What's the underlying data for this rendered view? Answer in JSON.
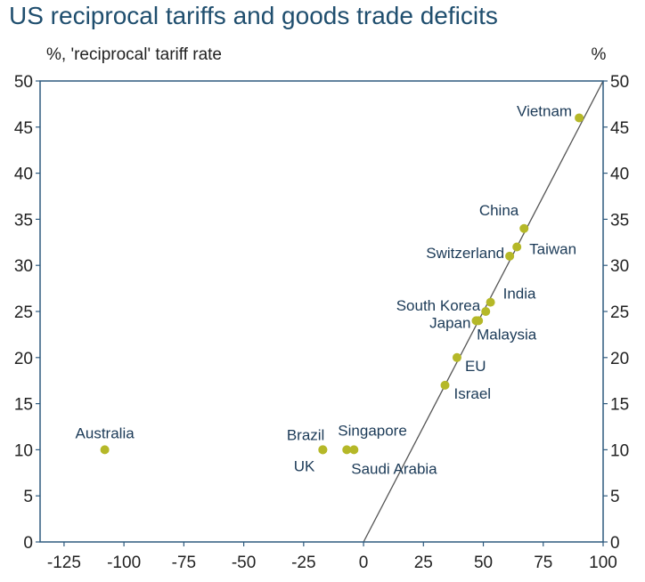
{
  "chart_data": {
    "type": "scatter",
    "title": "US reciprocal tariffs and goods trade deficits",
    "ylabel_left": "%, 'reciprocal' tariff rate",
    "ylabel_right": "%",
    "xlim": [
      -135,
      100
    ],
    "ylim": [
      0,
      50
    ],
    "x_ticks": [
      -125,
      -100,
      -75,
      -50,
      -25,
      0,
      25,
      50,
      75,
      100
    ],
    "y_ticks": [
      0,
      5,
      10,
      15,
      20,
      25,
      30,
      35,
      40,
      45,
      50
    ],
    "points": [
      {
        "label": "Vietnam",
        "x": 90,
        "y": 46
      },
      {
        "label": "China",
        "x": 67,
        "y": 34
      },
      {
        "label": "Taiwan",
        "x": 64,
        "y": 32
      },
      {
        "label": "Switzerland",
        "x": 61,
        "y": 31
      },
      {
        "label": "India",
        "x": 53,
        "y": 26
      },
      {
        "label": "South Korea",
        "x": 51,
        "y": 25
      },
      {
        "label": "Japan",
        "x": 47,
        "y": 24
      },
      {
        "label": "Malaysia",
        "x": 48,
        "y": 24
      },
      {
        "label": "EU",
        "x": 39,
        "y": 20
      },
      {
        "label": "Israel",
        "x": 34,
        "y": 17
      },
      {
        "label": "Singapore",
        "x": -4,
        "y": 10
      },
      {
        "label": "Saudi Arabia",
        "x": -7,
        "y": 10
      },
      {
        "label": "Brazil",
        "x": -17,
        "y": 10
      },
      {
        "label": "UK",
        "x": -17,
        "y": 10
      },
      {
        "label": "Australia",
        "x": -108,
        "y": 10
      }
    ],
    "trend_line": {
      "from": [
        0,
        0
      ],
      "to": [
        100,
        50
      ]
    },
    "colors": {
      "point": "#b5b828",
      "line": "#555555",
      "title": "#1f4e6e",
      "label": "#1b3a57",
      "axis": "#2e5a7e"
    }
  }
}
